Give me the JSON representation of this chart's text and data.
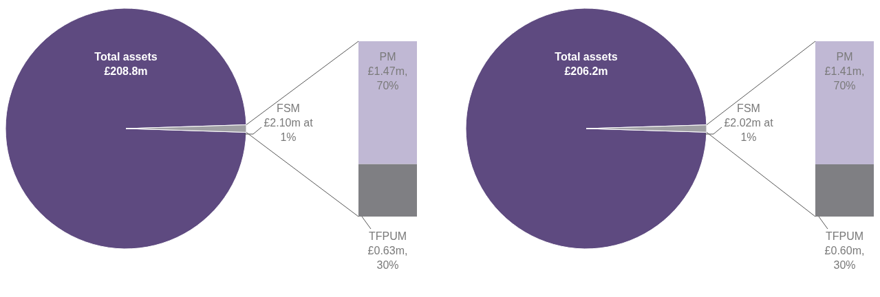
{
  "chart_data": [
    {
      "type": "pie",
      "categories": [
        "Total assets",
        "FSM"
      ],
      "values": [
        208.8,
        2.1
      ],
      "value_labels": [
        "£208.8m",
        "£2.10m at"
      ],
      "annotations": [
        "1%"
      ],
      "colors": [
        "#5e4a80",
        "#a0a0a4"
      ]
    },
    {
      "type": "bar",
      "stacked": true,
      "categories": [
        null
      ],
      "annotations": [
        "30%",
        "70%"
      ],
      "series": [
        {
          "name": "TFPUM",
          "color": "#7f7f83",
          "values": [
            0.63
          ],
          "value_labels": [
            "£0.63m,"
          ]
        },
        {
          "name": "PM",
          "color": "#c0b8d4",
          "values": [
            1.47
          ],
          "value_labels": [
            "£1.47m,"
          ]
        }
      ]
    },
    {
      "type": "pie",
      "categories": [
        "Total assets",
        "FSM"
      ],
      "values": [
        206.2,
        2.02
      ],
      "value_labels": [
        "£206.2m",
        "£2.02m at"
      ],
      "annotations": [
        "1%"
      ],
      "colors": [
        "#5e4a80",
        "#a0a0a4"
      ]
    },
    {
      "type": "bar",
      "stacked": true,
      "categories": [
        null
      ],
      "annotations": [
        "30%",
        "70%"
      ],
      "series": [
        {
          "name": "TFPUM",
          "color": "#7f7f83",
          "values": [
            0.6
          ],
          "value_labels": [
            "£0.60m,"
          ]
        },
        {
          "name": "PM",
          "color": "#c0b8d4",
          "values": [
            1.41
          ],
          "value_labels": [
            "£1.41m,"
          ]
        }
      ]
    }
  ]
}
